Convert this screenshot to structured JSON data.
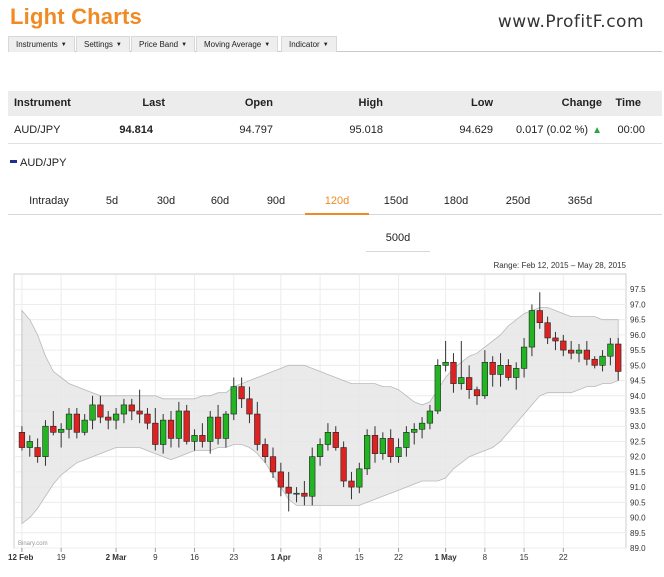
{
  "header": {
    "title": "Light Charts",
    "brand": "www.ProfitF.com"
  },
  "menu": [
    {
      "label": "Instruments"
    },
    {
      "label": "Settings"
    },
    {
      "label": "Price Band"
    },
    {
      "label": "Moving Average"
    },
    {
      "label": "Indicator"
    }
  ],
  "quote": {
    "headers": {
      "instrument": "Instrument",
      "last": "Last",
      "open": "Open",
      "high": "High",
      "low": "Low",
      "change": "Change",
      "time": "Time"
    },
    "row": {
      "instrument": "AUD/JPY",
      "last": "94.814",
      "open": "94.797",
      "high": "95.018",
      "low": "94.629",
      "change": "0.017 (0.02 %)",
      "time": "00:00"
    }
  },
  "legend": {
    "label": "AUD/JPY",
    "color": "#1e2e8c"
  },
  "tabs": [
    "Intraday",
    "5d",
    "30d",
    "60d",
    "90d",
    "120d",
    "150d",
    "180d",
    "250d",
    "365d"
  ],
  "active_tab": "120d",
  "tabs_row2": [
    "500d"
  ],
  "chart_data": {
    "type": "candlestick",
    "range_label": "Range: Feb 12, 2015 – May 28, 2015",
    "credit": "Binary.com",
    "up_color": "#22b422",
    "down_color": "#dd2222",
    "band_color": "#e6e6e6",
    "ylim": [
      89.0,
      98.0
    ],
    "y_ticks": [
      "89.0",
      "89.5",
      "90.0",
      "90.5",
      "91.0",
      "91.5",
      "92.0",
      "92.5",
      "93.0",
      "93.5",
      "94.0",
      "94.5",
      "95.0",
      "95.5",
      "96.0",
      "96.5",
      "97.0",
      "97.5"
    ],
    "x_ticks": [
      {
        "label": "12 Feb",
        "i": 0,
        "bold": true
      },
      {
        "label": "19",
        "i": 5
      },
      {
        "label": "2 Mar",
        "i": 12,
        "bold": true
      },
      {
        "label": "9",
        "i": 17
      },
      {
        "label": "16",
        "i": 22
      },
      {
        "label": "23",
        "i": 27
      },
      {
        "label": "1 Apr",
        "i": 33,
        "bold": true
      },
      {
        "label": "8",
        "i": 38
      },
      {
        "label": "15",
        "i": 43
      },
      {
        "label": "22",
        "i": 48
      },
      {
        "label": "1 May",
        "i": 54,
        "bold": true
      },
      {
        "label": "8",
        "i": 59
      },
      {
        "label": "15",
        "i": 64
      },
      {
        "label": "22",
        "i": 69
      }
    ],
    "candles": [
      [
        92.8,
        93.0,
        92.2,
        92.3
      ],
      [
        92.3,
        92.7,
        92.0,
        92.5
      ],
      [
        92.3,
        92.6,
        91.8,
        92.0
      ],
      [
        92.0,
        93.2,
        91.7,
        93.0
      ],
      [
        93.0,
        93.5,
        92.7,
        92.8
      ],
      [
        92.8,
        93.1,
        92.3,
        92.9
      ],
      [
        92.9,
        93.6,
        92.6,
        93.4
      ],
      [
        93.4,
        93.6,
        92.6,
        92.8
      ],
      [
        92.8,
        93.4,
        92.7,
        93.2
      ],
      [
        93.2,
        94.0,
        92.9,
        93.7
      ],
      [
        93.7,
        94.0,
        93.1,
        93.3
      ],
      [
        93.3,
        93.5,
        92.9,
        93.2
      ],
      [
        93.2,
        93.6,
        92.9,
        93.4
      ],
      [
        93.4,
        93.9,
        93.1,
        93.7
      ],
      [
        93.7,
        93.9,
        93.2,
        93.5
      ],
      [
        93.5,
        94.2,
        93.1,
        93.4
      ],
      [
        93.4,
        93.6,
        92.9,
        93.1
      ],
      [
        93.1,
        93.6,
        92.2,
        92.4
      ],
      [
        92.4,
        93.4,
        92.1,
        93.2
      ],
      [
        93.2,
        93.5,
        92.3,
        92.6
      ],
      [
        92.6,
        93.8,
        92.3,
        93.5
      ],
      [
        93.5,
        93.7,
        92.4,
        92.5
      ],
      [
        92.5,
        92.9,
        92.2,
        92.7
      ],
      [
        92.7,
        93.1,
        92.3,
        92.5
      ],
      [
        92.5,
        93.5,
        92.1,
        93.3
      ],
      [
        93.3,
        93.7,
        92.4,
        92.6
      ],
      [
        92.6,
        93.5,
        92.3,
        93.4
      ],
      [
        93.4,
        94.6,
        93.2,
        94.3
      ],
      [
        94.3,
        94.6,
        93.6,
        93.9
      ],
      [
        93.9,
        94.3,
        93.1,
        93.4
      ],
      [
        93.4,
        93.8,
        92.2,
        92.4
      ],
      [
        92.4,
        92.6,
        91.8,
        92.0
      ],
      [
        92.0,
        92.3,
        91.3,
        91.5
      ],
      [
        91.5,
        91.8,
        90.7,
        91.0
      ],
      [
        91.0,
        91.5,
        90.2,
        90.8
      ],
      [
        90.8,
        91.0,
        90.5,
        90.8
      ],
      [
        90.8,
        91.2,
        90.4,
        90.7
      ],
      [
        90.7,
        92.3,
        90.4,
        92.0
      ],
      [
        92.0,
        92.6,
        91.7,
        92.4
      ],
      [
        92.4,
        93.1,
        92.2,
        92.8
      ],
      [
        92.8,
        93.0,
        92.2,
        92.3
      ],
      [
        92.3,
        92.5,
        91.0,
        91.2
      ],
      [
        91.2,
        91.5,
        90.6,
        91.0
      ],
      [
        91.0,
        91.8,
        90.8,
        91.6
      ],
      [
        91.6,
        92.9,
        91.4,
        92.7
      ],
      [
        92.7,
        93.0,
        91.8,
        92.1
      ],
      [
        92.1,
        92.8,
        91.9,
        92.6
      ],
      [
        92.6,
        92.9,
        91.8,
        92.0
      ],
      [
        92.0,
        92.6,
        91.8,
        92.3
      ],
      [
        92.3,
        93.0,
        92.0,
        92.8
      ],
      [
        92.8,
        93.1,
        92.4,
        92.9
      ],
      [
        92.9,
        93.3,
        92.6,
        93.1
      ],
      [
        93.1,
        93.7,
        92.9,
        93.5
      ],
      [
        93.5,
        95.2,
        93.4,
        95.0
      ],
      [
        95.0,
        95.8,
        94.8,
        95.1
      ],
      [
        95.1,
        95.4,
        94.1,
        94.4
      ],
      [
        94.4,
        95.8,
        94.2,
        94.6
      ],
      [
        94.6,
        95.0,
        93.9,
        94.2
      ],
      [
        94.2,
        94.3,
        93.7,
        94.0
      ],
      [
        94.0,
        95.5,
        93.9,
        95.1
      ],
      [
        95.1,
        95.3,
        94.3,
        94.7
      ],
      [
        94.7,
        95.4,
        94.3,
        95.0
      ],
      [
        95.0,
        95.2,
        94.5,
        94.6
      ],
      [
        94.6,
        95.1,
        94.2,
        94.9
      ],
      [
        94.9,
        95.9,
        94.6,
        95.6
      ],
      [
        95.6,
        97.0,
        95.3,
        96.8
      ],
      [
        96.8,
        97.4,
        96.2,
        96.4
      ],
      [
        96.4,
        96.6,
        95.7,
        95.9
      ],
      [
        95.9,
        96.1,
        95.5,
        95.8
      ],
      [
        95.8,
        96.0,
        95.3,
        95.5
      ],
      [
        95.5,
        95.8,
        95.2,
        95.4
      ],
      [
        95.4,
        95.7,
        95.1,
        95.5
      ],
      [
        95.5,
        95.8,
        95.0,
        95.2
      ],
      [
        95.2,
        95.3,
        94.9,
        95.0
      ],
      [
        95.0,
        95.5,
        94.8,
        95.3
      ],
      [
        95.3,
        95.9,
        95.0,
        95.7
      ],
      [
        95.7,
        95.9,
        94.5,
        94.8
      ]
    ],
    "band_upper": [
      96.8,
      96.5,
      96.0,
      95.3,
      94.8,
      94.6,
      94.4,
      94.3,
      94.2,
      94.1,
      94.0,
      94.0,
      94.0,
      94.0,
      94.0,
      94.0,
      94.0,
      94.0,
      93.9,
      93.9,
      93.9,
      93.9,
      93.9,
      94.0,
      94.0,
      94.1,
      94.1,
      94.3,
      94.4,
      94.5,
      94.6,
      94.7,
      94.8,
      94.9,
      95.0,
      95.0,
      95.0,
      94.9,
      94.8,
      94.7,
      94.6,
      94.5,
      94.4,
      94.4,
      94.4,
      94.4,
      94.3,
      94.3,
      94.2,
      94.0,
      93.8,
      93.7,
      93.8,
      94.2,
      94.6,
      94.9,
      95.1,
      95.3,
      95.4,
      95.6,
      95.8,
      96.0,
      96.3,
      96.5,
      96.7,
      96.8,
      96.9,
      96.9,
      96.8,
      96.7,
      96.6,
      96.6,
      96.6,
      96.6,
      96.5,
      96.5,
      96.5
    ],
    "band_lower": [
      89.8,
      90.0,
      90.3,
      90.7,
      91.1,
      91.4,
      91.6,
      91.8,
      91.9,
      92.0,
      92.1,
      92.2,
      92.3,
      92.3,
      92.3,
      92.3,
      92.2,
      92.1,
      92.0,
      91.9,
      92.0,
      92.1,
      92.2,
      92.2,
      92.2,
      92.3,
      92.3,
      92.4,
      92.4,
      92.3,
      92.1,
      91.8,
      91.4,
      91.0,
      90.6,
      90.4,
      90.4,
      90.4,
      90.4,
      90.4,
      90.4,
      90.4,
      90.4,
      90.4,
      90.5,
      90.6,
      90.7,
      90.8,
      90.9,
      91.0,
      91.1,
      91.2,
      91.2,
      91.2,
      91.3,
      91.6,
      91.8,
      92.0,
      92.1,
      92.2,
      92.3,
      92.5,
      92.8,
      93.1,
      93.4,
      93.7,
      94.0,
      94.1,
      94.1,
      94.1,
      94.1,
      94.2,
      94.3,
      94.3,
      94.4,
      94.4,
      94.5
    ]
  }
}
